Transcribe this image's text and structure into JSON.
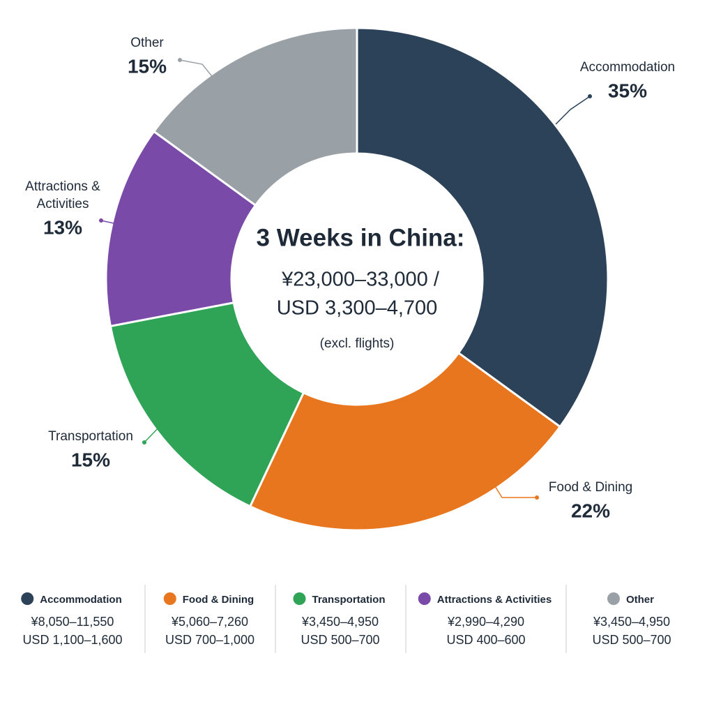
{
  "chart_data": {
    "type": "donut",
    "title": "3 Weeks in China:",
    "subtitle_lines": [
      "¥23,000–33,000 /",
      "USD 3,300–4,700"
    ],
    "note": "(excl. flights)",
    "categories": [
      "Accommodation",
      "Food & Dining",
      "Transportation",
      "Attractions & Activities",
      "Other"
    ],
    "values": [
      35,
      22,
      15,
      13,
      15
    ],
    "value_labels": [
      "35%",
      "22%",
      "15%",
      "13%",
      "15%"
    ],
    "colors": [
      "#2b4259",
      "#e8761e",
      "#2fa456",
      "#7a4aa8",
      "#9aa1a6"
    ],
    "ranges": [
      {
        "cny": "¥8,050–11,550",
        "usd": "USD 1,100–1,600"
      },
      {
        "cny": "¥5,060–7,260",
        "usd": "USD 700–1,000"
      },
      {
        "cny": "¥3,450–4,950",
        "usd": "USD 500–700"
      },
      {
        "cny": "¥2,990–4,290",
        "usd": "USD 400–600"
      },
      {
        "cny": "¥3,450–4,950",
        "usd": "USD 500–700"
      }
    ]
  }
}
